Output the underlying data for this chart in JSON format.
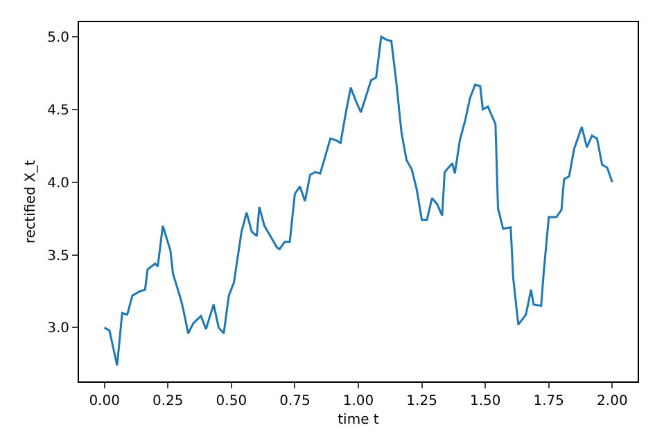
{
  "chart_data": {
    "type": "line",
    "xlabel": "time t",
    "ylabel": "rectified X_t",
    "xlim": [
      -0.1,
      2.1
    ],
    "xticks": [
      {
        "value": 0,
        "label": "0.00"
      },
      {
        "value": 0.25,
        "label": "0.25"
      },
      {
        "value": 0.5,
        "label": "0.50"
      },
      {
        "value": 0.75,
        "label": "0.75"
      },
      {
        "value": 1,
        "label": "1.00"
      },
      {
        "value": 1.25,
        "label": "1.25"
      },
      {
        "value": 1.5,
        "label": "1.50"
      },
      {
        "value": 1.75,
        "label": "1.75"
      },
      {
        "value": 2,
        "label": "2.00"
      }
    ],
    "ylim": [
      2.63,
      5.1
    ],
    "yticks": [
      {
        "value": 3,
        "label": "3.0"
      },
      {
        "value": 3.5,
        "label": "3.5"
      },
      {
        "value": 4,
        "label": "4.0"
      },
      {
        "value": 4.5,
        "label": "4.5"
      },
      {
        "value": 5,
        "label": "5.0"
      }
    ],
    "marker": "none",
    "line_style": "solid",
    "series": [
      {
        "color": "#1f77b4",
        "x": [
          0,
          0.02,
          0.05,
          0.07,
          0.09,
          0.11,
          0.14,
          0.16,
          0.17,
          0.2,
          0.21,
          0.23,
          0.26,
          0.27,
          0.3,
          0.31,
          0.33,
          0.35,
          0.38,
          0.4,
          0.43,
          0.45,
          0.47,
          0.49,
          0.51,
          0.54,
          0.56,
          0.58,
          0.6,
          0.61,
          0.63,
          0.66,
          0.68,
          0.69,
          0.71,
          0.73,
          0.75,
          0.77,
          0.79,
          0.81,
          0.83,
          0.85,
          0.87,
          0.89,
          0.91,
          0.93,
          0.95,
          0.97,
          0.99,
          1.01,
          1.03,
          1.05,
          1.07,
          1.09,
          1.11,
          1.13,
          1.15,
          1.17,
          1.19,
          1.21,
          1.23,
          1.25,
          1.27,
          1.29,
          1.31,
          1.33,
          1.34,
          1.37,
          1.38,
          1.4,
          1.42,
          1.44,
          1.46,
          1.48,
          1.49,
          1.51,
          1.54,
          1.55,
          1.57,
          1.6,
          1.61,
          1.63,
          1.66,
          1.68,
          1.69,
          1.72,
          1.73,
          1.75,
          1.78,
          1.8,
          1.81,
          1.83,
          1.85,
          1.88,
          1.9,
          1.92,
          1.94,
          1.96,
          1.98,
          2.0
        ],
        "values": [
          3.0,
          2.98,
          2.74,
          3.1,
          3.09,
          3.22,
          3.25,
          3.26,
          3.4,
          3.44,
          3.42,
          3.7,
          3.53,
          3.37,
          3.2,
          3.13,
          2.96,
          3.03,
          3.08,
          2.99,
          3.16,
          3.0,
          2.96,
          3.22,
          3.31,
          3.66,
          3.79,
          3.66,
          3.63,
          3.83,
          3.7,
          3.61,
          3.55,
          3.54,
          3.59,
          3.59,
          3.92,
          3.97,
          3.87,
          4.05,
          4.07,
          4.06,
          4.18,
          4.3,
          4.29,
          4.27,
          4.47,
          4.65,
          4.56,
          4.48,
          4.59,
          4.7,
          4.72,
          5.0,
          4.98,
          4.97,
          4.68,
          4.34,
          4.15,
          4.09,
          3.95,
          3.74,
          3.74,
          3.89,
          3.85,
          3.77,
          4.07,
          4.13,
          4.06,
          4.29,
          4.42,
          4.58,
          4.67,
          4.66,
          4.5,
          4.52,
          4.4,
          3.82,
          3.68,
          3.69,
          3.34,
          3.02,
          3.09,
          3.26,
          3.16,
          3.15,
          3.38,
          3.76,
          3.76,
          3.81,
          4.02,
          4.04,
          4.23,
          4.38,
          4.24,
          4.32,
          4.3,
          4.12,
          4.1,
          4.0
        ]
      }
    ]
  }
}
